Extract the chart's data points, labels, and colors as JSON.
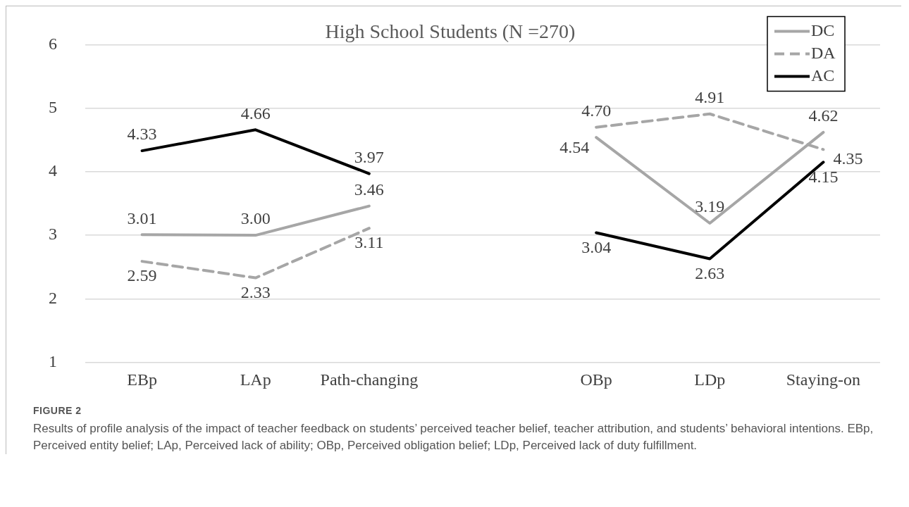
{
  "chart_data": {
    "type": "line",
    "title": "High School Students (N =270)",
    "categories": [
      "EBp",
      "LAp",
      "Path-changing",
      null,
      "OBp",
      "LDp",
      "Staying-on"
    ],
    "series": [
      {
        "name": "DC",
        "color": "#a6a6a6",
        "line_style": "solid",
        "values": [
          3.01,
          3.0,
          3.46,
          null,
          4.54,
          3.19,
          4.62
        ],
        "value_labels": [
          "3.01",
          "3.00",
          "3.46",
          null,
          "4.54",
          "3.19",
          "4.62"
        ]
      },
      {
        "name": "DA",
        "color": "#a6a6a6",
        "line_style": "dashed",
        "values": [
          2.59,
          2.33,
          3.11,
          null,
          4.7,
          4.91,
          4.35
        ],
        "value_labels": [
          "2.59",
          "2.33",
          "3.11",
          null,
          "4.70",
          "4.91",
          "4.35"
        ]
      },
      {
        "name": "AC",
        "color": "#000000",
        "line_style": "solid",
        "values": [
          4.33,
          4.66,
          3.97,
          null,
          3.04,
          2.63,
          4.15
        ],
        "value_labels": [
          "4.33",
          "4.66",
          "3.97",
          null,
          "3.04",
          "2.63",
          "4.15"
        ]
      }
    ],
    "ylim": [
      1,
      6
    ],
    "yticks": [
      1,
      2,
      3,
      4,
      5,
      6
    ],
    "grid": "y",
    "legend": "top right",
    "marker": "none",
    "annotations": [
      "FIGURE 2",
      "Results of profile analysis of the impact of teacher feedback on students’ perceived teacher belief, teacher attribution, and students’ behavioral intentions. EBp, Perceived entity belief; LAp, Perceived lack of ability; OBp, Perceived obligation belief; LDp, Perceived lack of duty fulfillment."
    ]
  }
}
